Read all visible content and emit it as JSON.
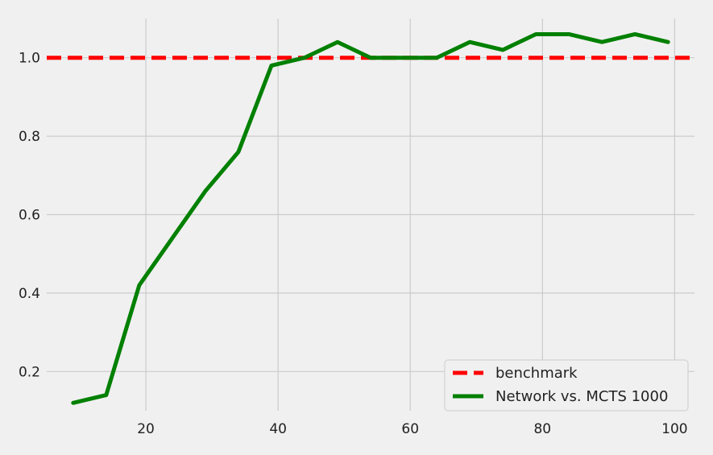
{
  "chart_data": {
    "type": "line",
    "title": "",
    "xlabel": "",
    "ylabel": "",
    "xlim": [
      5,
      103
    ],
    "ylim": [
      0.1,
      1.1
    ],
    "xticks": [
      20,
      40,
      60,
      80,
      100
    ],
    "yticks": [
      0.2,
      0.4,
      0.6,
      0.8,
      1.0
    ],
    "xtick_labels": [
      "20",
      "40",
      "60",
      "80",
      "100"
    ],
    "ytick_labels": [
      "0.2",
      "0.4",
      "0.6",
      "0.8",
      "1.0"
    ],
    "grid": true,
    "legend_position": "lower-right",
    "series": [
      {
        "name": "benchmark",
        "style": "dashed",
        "color": "#ff0000",
        "x": [
          5,
          103
        ],
        "values": [
          1.0,
          1.0
        ]
      },
      {
        "name": "Network vs. MCTS 1000",
        "style": "solid",
        "color": "#008000",
        "x": [
          9,
          14,
          19,
          24,
          29,
          34,
          39,
          44,
          49,
          54,
          59,
          64,
          69,
          74,
          79,
          84,
          89,
          94,
          99
        ],
        "values": [
          0.12,
          0.14,
          0.42,
          0.54,
          0.66,
          0.76,
          0.98,
          1.0,
          1.04,
          1.0,
          1.0,
          1.0,
          1.04,
          1.02,
          1.06,
          1.06,
          1.04,
          1.06,
          1.04
        ]
      }
    ]
  }
}
